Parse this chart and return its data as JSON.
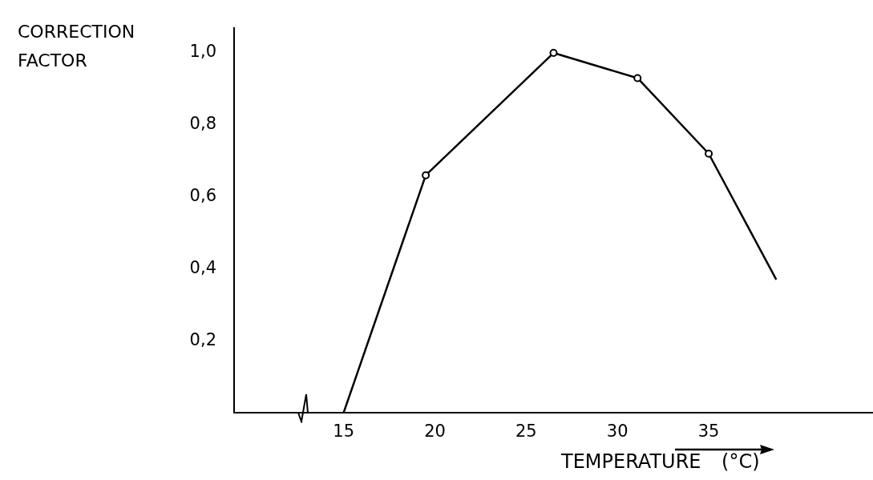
{
  "chart_data": {
    "type": "line",
    "xlabel": "TEMPERATURE (°C)",
    "ylabel": "CORRECTION FACTOR",
    "x": [
      15,
      19.5,
      26.5,
      31.1,
      35,
      38.7
    ],
    "series": [
      {
        "color": "#000000",
        "values": [
          0,
          0.66,
          1.0,
          0.93,
          0.72,
          0.37
        ]
      }
    ],
    "xlim": [
      9,
      44
    ],
    "xticks": [
      15,
      20,
      25,
      30,
      35
    ],
    "ylim": [
      0,
      1.07
    ],
    "yticks": [
      {
        "value": 0.2,
        "label": "0,2"
      },
      {
        "value": 0.4,
        "label": "0,4"
      },
      {
        "value": 0.6,
        "label": "0,6"
      },
      {
        "value": 0.8,
        "label": "0,8"
      },
      {
        "value": 1,
        "label": "1,0"
      }
    ],
    "grid": false,
    "legend": false,
    "marker": "circle",
    "line_style": "solid"
  }
}
